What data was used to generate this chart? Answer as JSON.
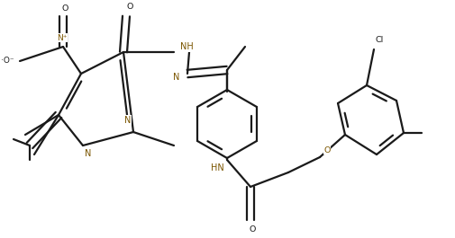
{
  "background_color": "#ffffff",
  "line_color": "#1a1a1a",
  "lw": 1.5,
  "figsize": [
    5.06,
    2.65
  ],
  "dpi": 100,
  "xlim": [
    0,
    5.06
  ],
  "ylim": [
    0,
    2.65
  ]
}
